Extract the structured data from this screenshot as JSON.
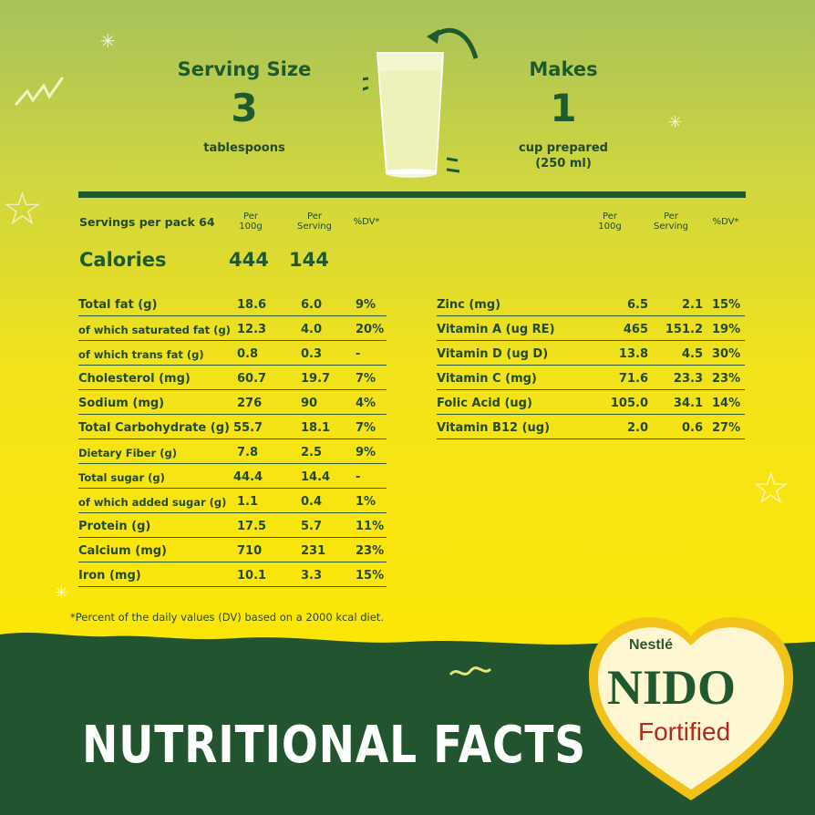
{
  "header": {
    "serving_label": "Serving Size",
    "serving_value": "3",
    "serving_unit": "tablespoons",
    "makes_label": "Makes",
    "makes_value": "1",
    "makes_unit_line1": "cup prepared",
    "makes_unit_line2": "(250 ml)"
  },
  "servings_per_pack": "Servings per pack 64",
  "col_headers": {
    "per100g_1": "Per",
    "per100g_2": "100g",
    "perserving_1": "Per",
    "perserving_2": "Serving",
    "dv": "%DV*"
  },
  "calories": {
    "label": "Calories",
    "per100g": "444",
    "perserving": "144"
  },
  "left_rows": [
    {
      "label": "Total fat (g)",
      "per100g": "18.6",
      "perserving": "6.0",
      "dv": "9%"
    },
    {
      "label": "of which saturated fat (g)",
      "per100g": "12.3",
      "perserving": "4.0",
      "dv": "20%"
    },
    {
      "label": "of which trans fat (g)",
      "per100g": "0.8",
      "perserving": "0.3",
      "dv": "-"
    },
    {
      "label": "Cholesterol (mg)",
      "per100g": "60.7",
      "perserving": "19.7",
      "dv": "7%"
    },
    {
      "label": "Sodium (mg)",
      "per100g": "276",
      "perserving": "90",
      "dv": "4%"
    },
    {
      "label": "Total Carbohydrate (g)",
      "per100g": "55.7",
      "perserving": "18.1",
      "dv": "7%"
    },
    {
      "label": "Dietary Fiber (g)",
      "per100g": "7.8",
      "perserving": "2.5",
      "dv": "9%"
    },
    {
      "label": "Total sugar (g)",
      "per100g": "44.4",
      "perserving": "14.4",
      "dv": "-"
    },
    {
      "label": "of which added sugar (g)",
      "per100g": "1.1",
      "perserving": "0.4",
      "dv": "1%"
    },
    {
      "label": "Protein (g)",
      "per100g": "17.5",
      "perserving": "5.7",
      "dv": "11%"
    },
    {
      "label": "Calcium (mg)",
      "per100g": "710",
      "perserving": "231",
      "dv": "23%"
    },
    {
      "label": "Iron (mg)",
      "per100g": "10.1",
      "perserving": "3.3",
      "dv": "15%"
    }
  ],
  "right_rows": [
    {
      "label": "Zinc (mg)",
      "per100g": "6.5",
      "perserving": "2.1",
      "dv": "15%"
    },
    {
      "label": "Vitamin A (ug RE)",
      "per100g": "465",
      "perserving": "151.2",
      "dv": "19%"
    },
    {
      "label": "Vitamin D (ug D)",
      "per100g": "13.8",
      "perserving": "4.5",
      "dv": "30%"
    },
    {
      "label": "Vitamin C (mg)",
      "per100g": "71.6",
      "perserving": "23.3",
      "dv": "23%"
    },
    {
      "label": "Folic Acid (ug)",
      "per100g": "105.0",
      "perserving": "34.1",
      "dv": "14%"
    },
    {
      "label": "Vitamin B12 (ug)",
      "per100g": "2.0",
      "perserving": "0.6",
      "dv": "27%"
    }
  ],
  "footnote": "*Percent of the daily values (DV) based on a 2000 kcal diet.",
  "banner_title": "NUTRITIONAL FACTS",
  "logo": {
    "brand": "Nestlé",
    "name": "NIDO",
    "variant": "Fortified"
  },
  "colors": {
    "dark_green": "#1f5a2e",
    "band_green": "#22552f",
    "yellow": "#fde500",
    "logo_red": "#b22a1e"
  }
}
